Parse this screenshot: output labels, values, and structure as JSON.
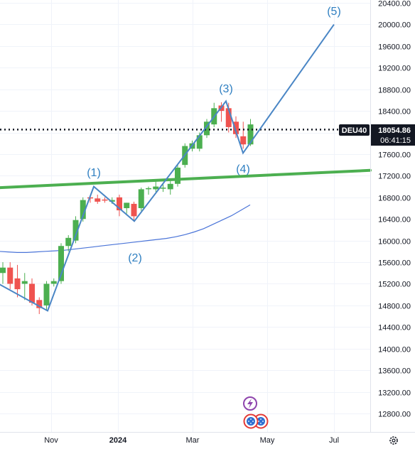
{
  "instrument": "DEU40",
  "last_price": "18054.86",
  "countdown": "06:41:15",
  "icons": {
    "settings": "gear-icon",
    "lightning": "lightning-icon",
    "events": "earth-flag-icon"
  },
  "colors": {
    "up": "#4caf50",
    "down": "#ef5350",
    "wave": "#4a86c5",
    "trend": "#4caf50",
    "ma": "#4a74d8"
  },
  "chart_data": {
    "type": "candlestick",
    "title": "",
    "xlabel": "",
    "ylabel": "",
    "ylim": [
      12460,
      20500
    ],
    "x_ticks": [
      "Nov",
      "2024",
      "Mar",
      "May",
      "Jul"
    ],
    "y_ticks": [
      20400,
      20000,
      19600,
      19200,
      18800,
      18400,
      18000,
      17600,
      17200,
      16800,
      16400,
      16000,
      15600,
      15200,
      14800,
      14400,
      14000,
      13600,
      13200,
      12800
    ],
    "candles": [
      {
        "o": 15400,
        "h": 15600,
        "l": 15200,
        "c": 15500
      },
      {
        "o": 15500,
        "h": 15600,
        "l": 15100,
        "c": 15200
      },
      {
        "o": 15300,
        "h": 15550,
        "l": 14950,
        "c": 15100
      },
      {
        "o": 15200,
        "h": 15400,
        "l": 14900,
        "c": 15250
      },
      {
        "o": 15200,
        "h": 15300,
        "l": 14800,
        "c": 14850
      },
      {
        "o": 14900,
        "h": 14950,
        "l": 14640,
        "c": 14750
      },
      {
        "o": 14800,
        "h": 15250,
        "l": 14700,
        "c": 15200
      },
      {
        "o": 15200,
        "h": 15300,
        "l": 15150,
        "c": 15250
      },
      {
        "o": 15250,
        "h": 15950,
        "l": 15200,
        "c": 15900
      },
      {
        "o": 15900,
        "h": 16100,
        "l": 15800,
        "c": 16050
      },
      {
        "o": 16000,
        "h": 16450,
        "l": 15950,
        "c": 16380
      },
      {
        "o": 16400,
        "h": 16800,
        "l": 16350,
        "c": 16750
      },
      {
        "o": 16800,
        "h": 16830,
        "l": 16700,
        "c": 16780
      },
      {
        "o": 16780,
        "h": 16850,
        "l": 16680,
        "c": 16720
      },
      {
        "o": 16760,
        "h": 16800,
        "l": 16700,
        "c": 16740
      },
      {
        "o": 16720,
        "h": 16800,
        "l": 16680,
        "c": 16750
      },
      {
        "o": 16800,
        "h": 16850,
        "l": 16450,
        "c": 16560
      },
      {
        "o": 16600,
        "h": 16700,
        "l": 16500,
        "c": 16700
      },
      {
        "o": 16680,
        "h": 16720,
        "l": 16350,
        "c": 16450
      },
      {
        "o": 16600,
        "h": 16980,
        "l": 16550,
        "c": 16950
      },
      {
        "o": 16960,
        "h": 17000,
        "l": 16850,
        "c": 16970
      },
      {
        "o": 16950,
        "h": 17100,
        "l": 16900,
        "c": 17000
      },
      {
        "o": 16980,
        "h": 17060,
        "l": 16900,
        "c": 16980
      },
      {
        "o": 16950,
        "h": 17100,
        "l": 16850,
        "c": 17050
      },
      {
        "o": 17050,
        "h": 17400,
        "l": 17000,
        "c": 17350
      },
      {
        "o": 17400,
        "h": 17800,
        "l": 17350,
        "c": 17750
      },
      {
        "o": 17700,
        "h": 17850,
        "l": 17650,
        "c": 17800
      },
      {
        "o": 17700,
        "h": 18000,
        "l": 17650,
        "c": 17950
      },
      {
        "o": 17950,
        "h": 18250,
        "l": 17900,
        "c": 18200
      },
      {
        "o": 18150,
        "h": 18550,
        "l": 18100,
        "c": 18450
      },
      {
        "o": 18500,
        "h": 18560,
        "l": 18200,
        "c": 18400
      },
      {
        "o": 18450,
        "h": 18550,
        "l": 18000,
        "c": 18100
      },
      {
        "o": 18200,
        "h": 18300,
        "l": 17900,
        "c": 17970
      },
      {
        "o": 17930,
        "h": 18200,
        "l": 17700,
        "c": 17780
      },
      {
        "o": 17780,
        "h": 18250,
        "l": 17750,
        "c": 18150
      }
    ],
    "moving_average": [
      15800,
      15790,
      15780,
      15780,
      15790,
      15800,
      15810,
      15820,
      15840,
      15860,
      15880,
      15900,
      15920,
      15940,
      15960,
      15980,
      16000,
      16020,
      16040,
      16070,
      16110,
      16160,
      16220,
      16300,
      16380,
      16460,
      16560,
      16660
    ],
    "horizontal_line": 18054.86,
    "trend_line": {
      "from": 16980,
      "to": 17300
    },
    "elliott_waves": [
      {
        "label": "(1)",
        "price": 17000
      },
      {
        "label": "(2)",
        "price": 16360
      },
      {
        "label": "(3)",
        "price": 18580
      },
      {
        "label": "(4)",
        "price": 17620
      },
      {
        "label": "(5)",
        "price": 20000
      }
    ]
  }
}
